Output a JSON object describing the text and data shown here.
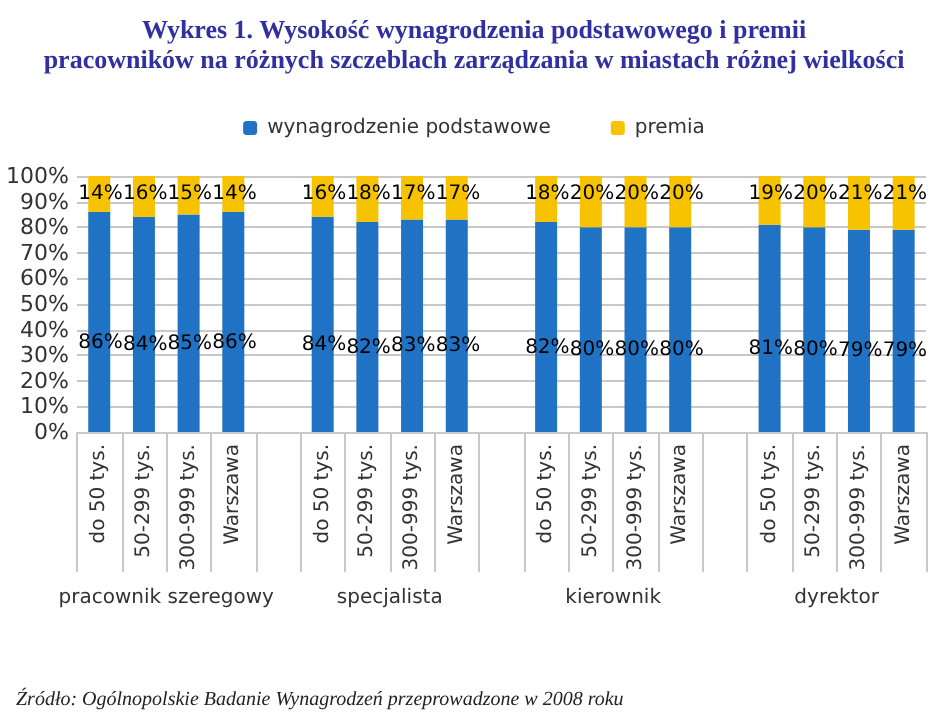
{
  "chart_data": {
    "type": "bar",
    "stacked": true,
    "title": "Wykres 1. Wysokość wynagrodzenia podstawowego i premii\npracowników na różnych szczeblach zarządzania w miastach różnej wielkości",
    "categories": [
      "do 50 tys.",
      "50-299 tys.",
      "300-999 tys.",
      "Warszawa",
      null,
      "do 50 tys.",
      "50-299 tys.",
      "300-999 tys.",
      "Warszawa",
      null,
      "do 50 tys.",
      "50-299 tys.",
      "300-999 tys.",
      "Warszawa",
      null,
      "do 50 tys.",
      "50-299 tys.",
      "300-999 tys.",
      "Warszawa"
    ],
    "series": [
      {
        "name": "wynagrodzenie podstawowe",
        "color": "#1f72c4",
        "values": [
          86,
          84,
          85,
          86,
          null,
          84,
          82,
          83,
          83,
          null,
          82,
          80,
          80,
          80,
          null,
          81,
          80,
          79,
          79
        ],
        "value_labels": [
          "86%",
          "84%",
          "85%",
          "86%",
          null,
          "84%",
          "82%",
          "83%",
          "83%",
          null,
          "82%",
          "80%",
          "80%",
          "80%",
          null,
          "81%",
          "80%",
          "79%",
          "79%"
        ]
      },
      {
        "name": "premia",
        "color": "#f7c200",
        "values": [
          14,
          16,
          15,
          14,
          null,
          16,
          18,
          17,
          17,
          null,
          18,
          20,
          20,
          20,
          null,
          19,
          20,
          21,
          21
        ],
        "value_labels": [
          "14%",
          "16%",
          "15%",
          "14%",
          null,
          "16%",
          "18%",
          "17%",
          "17%",
          null,
          "18%",
          "20%",
          "20%",
          "20%",
          null,
          "19%",
          "20%",
          "21%",
          "21%"
        ]
      }
    ],
    "ylim": [
      0,
      100
    ],
    "yticks": [
      {
        "value": 0,
        "label": "0%"
      },
      {
        "value": 10,
        "label": "10%"
      },
      {
        "value": 20,
        "label": "20%"
      },
      {
        "value": 30,
        "label": "30%"
      },
      {
        "value": 40,
        "label": "40%"
      },
      {
        "value": 50,
        "label": "50%"
      },
      {
        "value": 60,
        "label": "60%"
      },
      {
        "value": 70,
        "label": "70%"
      },
      {
        "value": 80,
        "label": "80%"
      },
      {
        "value": 90,
        "label": "90%"
      },
      {
        "value": 100,
        "label": "100%"
      }
    ],
    "grid": "y",
    "legend": "top",
    "annotations": [
      "pracownik szeregowy",
      "specjalista",
      "kierownik",
      "dyrektor",
      "Źródło: Ogólnopolskie Badanie Wynagrodzeń przeprowadzone w 2008 roku"
    ]
  }
}
